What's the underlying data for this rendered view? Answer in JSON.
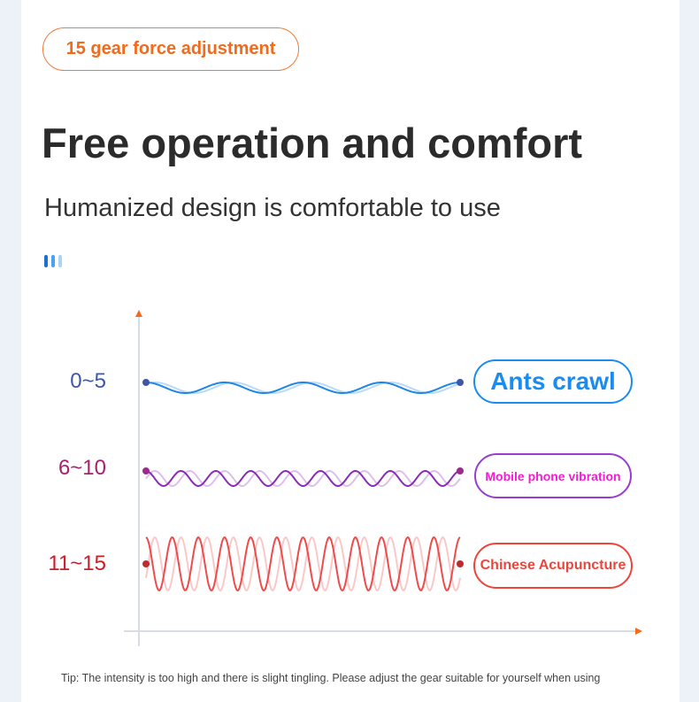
{
  "badge": "15 gear force adjustment",
  "title": "Free operation and comfort",
  "subtitle": "Humanized design is comfortable to use",
  "decor_bar_colors": [
    "#1e6fd0",
    "#4aa3f0",
    "#a8d4fb"
  ],
  "axis_color": "#d8dce3",
  "axis_arrow_color": "#f26a1b",
  "levels": [
    {
      "range": "0~5",
      "label": "Ants crawl",
      "range_color": "#3f56a8",
      "label_color": "#1a8cf0",
      "border_color": "#1a8cf0",
      "wave_color": "#1e86e6",
      "dot_color": "#3f56a8"
    },
    {
      "range": "6~10",
      "label": "Mobile phone vibration",
      "range_color": "#a8206e",
      "label_color": "#f020d0",
      "border_color": "#9a3ccf",
      "wave_color": "#8a2ab8",
      "dot_color": "#9b2a8c"
    },
    {
      "range": "11~15",
      "label": "Chinese Acupuncture",
      "range_color": "#c8202a",
      "label_color": "#f0443a",
      "border_color": "#f0443a",
      "wave_color": "#f04a4a",
      "dot_color": "#c02a2a"
    }
  ],
  "tip": "Tip: The intensity is too high and there is slight tingling. Please adjust the gear suitable for yourself when using"
}
